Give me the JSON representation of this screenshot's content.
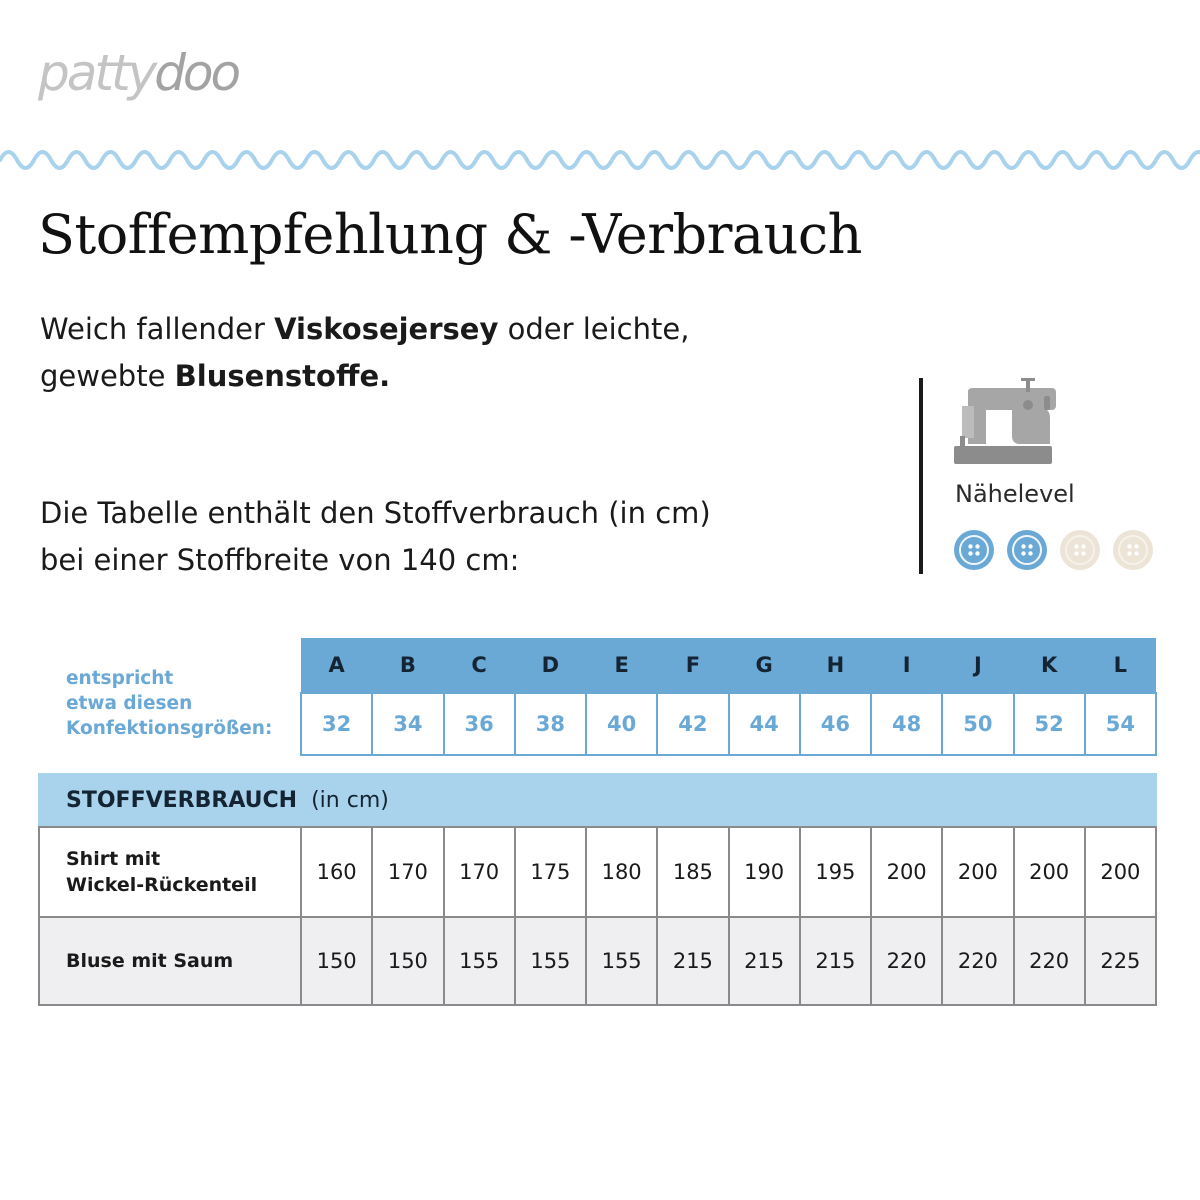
{
  "brand": {
    "part1": "patty",
    "part2": "doo"
  },
  "title": "Stoffempfehlung & -Verbrauch",
  "intro": {
    "t1": "Weich fallender ",
    "b1": "Viskosejersey",
    "t2": " oder leichte,",
    "t3": "gewebte ",
    "b2": "Blusenstoffe."
  },
  "note": {
    "line1": "Die Tabelle enthält den Stoffverbrauch (in cm)",
    "line2": "bei einer Stoffbreite von 140 cm:"
  },
  "sewing_level": {
    "label": "Nähelevel",
    "icon": "sewing-machine-icon",
    "level": 2,
    "max": 4,
    "active_color": "#6aa8d6",
    "inactive_color": "#ece4d6"
  },
  "sizes": {
    "caption": [
      "entspricht",
      "etwa diesen",
      "Konfektionsgrößen:"
    ],
    "letters": [
      "A",
      "B",
      "C",
      "D",
      "E",
      "F",
      "G",
      "H",
      "I",
      "J",
      "K",
      "L"
    ],
    "numbers": [
      "32",
      "34",
      "36",
      "38",
      "40",
      "42",
      "44",
      "46",
      "48",
      "50",
      "52",
      "54"
    ]
  },
  "usage": {
    "header": "STOFFVERBRAUCH",
    "unit": "(in cm)",
    "rows": [
      {
        "label_line1": "Shirt mit",
        "label_line2": "Wickel-Rückenteil",
        "values": [
          "160",
          "170",
          "170",
          "175",
          "180",
          "185",
          "190",
          "195",
          "200",
          "200",
          "200",
          "200"
        ]
      },
      {
        "label_line1": "Bluse mit Saum",
        "label_line2": "",
        "values": [
          "150",
          "150",
          "155",
          "155",
          "155",
          "215",
          "215",
          "215",
          "220",
          "220",
          "220",
          "225"
        ]
      }
    ]
  },
  "colors": {
    "accent_blue": "#6aa8d6",
    "light_blue": "#a9d3ec",
    "row_gray": "#efeff2",
    "logo_light": "#c4c4c4",
    "logo_dark": "#a3a3a3"
  }
}
